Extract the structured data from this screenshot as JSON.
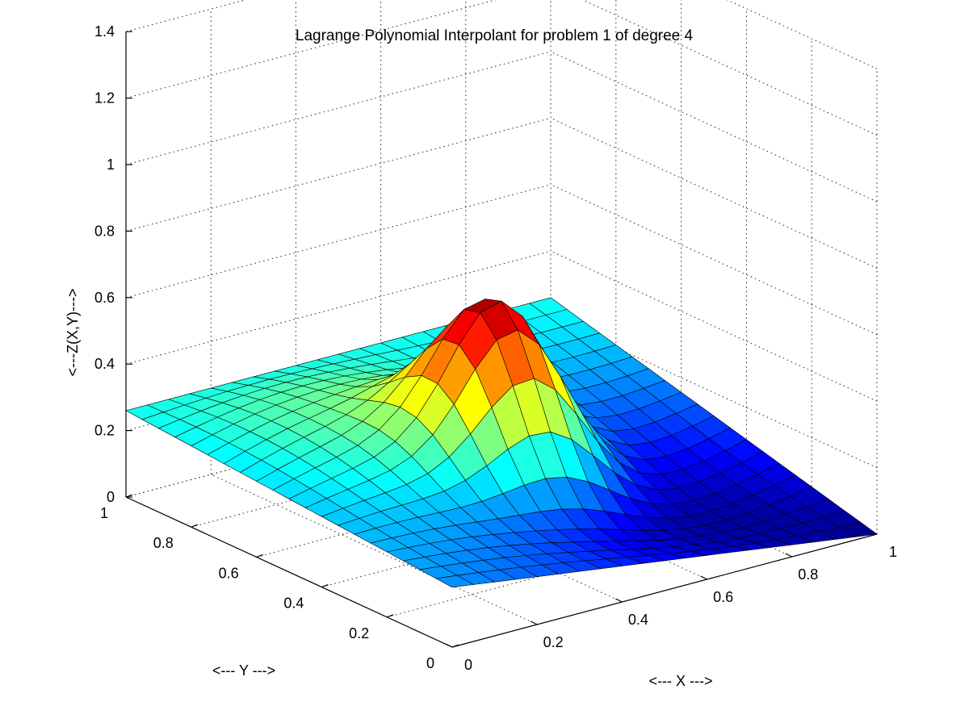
{
  "chart_data": {
    "type": "surface",
    "title": "Lagrange Polynomial Interpolant for problem 1 of degree 4",
    "xlabel": "<--- X --->",
    "ylabel": "<--- Y --->",
    "zlabel": "<---Z(X,Y)--->",
    "xlim": [
      0,
      1
    ],
    "ylim": [
      0,
      1
    ],
    "zlim": [
      0,
      1.4
    ],
    "x_ticks": [
      "0",
      "0.2",
      "0.4",
      "0.6",
      "0.8",
      "1"
    ],
    "y_ticks": [
      "0",
      "0.2",
      "0.4",
      "0.6",
      "0.8",
      "1"
    ],
    "z_ticks": [
      "0",
      "0.2",
      "0.4",
      "0.6",
      "0.8",
      "1",
      "1.2",
      "1.4"
    ],
    "grid": true,
    "colormap": "jet",
    "mesh_resolution": 21,
    "surface_model": {
      "peak": {
        "x": 0.5,
        "y": 0.5,
        "z": 0.66
      },
      "corners_z": {
        "x0y0": 0.18,
        "x1y0": 0.0,
        "x0y1": 0.26,
        "x1y1": 0.26
      },
      "edge_midpoints_z": {
        "y0_mid": 0.28,
        "x1_mid": 0.0,
        "x0_mid": 0.22,
        "y1_mid": 0.34
      }
    },
    "color_range": [
      0.0,
      0.66
    ]
  }
}
